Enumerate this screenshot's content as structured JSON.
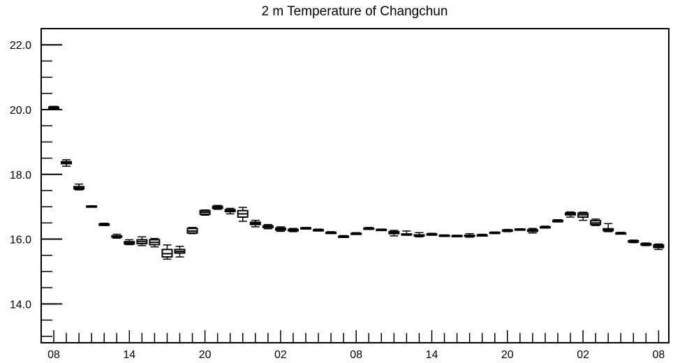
{
  "chart_data": {
    "type": "boxplot",
    "title": "2 m Temperature of Changchun",
    "xlabel": "",
    "ylabel": "",
    "ylim": [
      12.8,
      22.5
    ],
    "y_major_ticks": [
      14.0,
      16.0,
      18.0,
      20.0,
      22.0
    ],
    "y_tick_labels": [
      "14.0",
      "16.0",
      "18.0",
      "20.0",
      "22.0"
    ],
    "y_minor_step": 0.5,
    "x_tick_labels": [
      "08",
      "14",
      "20",
      "02",
      "08",
      "14",
      "20",
      "02",
      "08"
    ],
    "x_label_every": 6,
    "grid": false,
    "series": [
      {
        "boxes": [
          {
            "x": 0,
            "min": 20.02,
            "q1": 20.04,
            "median": 20.06,
            "q3": 20.08,
            "max": 20.1
          },
          {
            "x": 1,
            "min": 18.25,
            "q1": 18.33,
            "median": 18.36,
            "q3": 18.39,
            "max": 18.45
          },
          {
            "x": 2,
            "min": 17.52,
            "q1": 17.55,
            "median": 17.58,
            "q3": 17.62,
            "max": 17.7
          },
          {
            "x": 3,
            "min": 16.99,
            "q1": 17.0,
            "median": 17.01,
            "q3": 17.02,
            "max": 17.03
          },
          {
            "x": 4,
            "min": 16.42,
            "q1": 16.43,
            "median": 16.45,
            "q3": 16.47,
            "max": 16.49
          },
          {
            "x": 5,
            "min": 16.03,
            "q1": 16.06,
            "median": 16.08,
            "q3": 16.1,
            "max": 16.15
          },
          {
            "x": 6,
            "min": 15.83,
            "q1": 15.85,
            "median": 15.88,
            "q3": 15.92,
            "max": 15.98
          },
          {
            "x": 7,
            "min": 15.8,
            "q1": 15.86,
            "median": 15.92,
            "q3": 15.98,
            "max": 16.07
          },
          {
            "x": 8,
            "min": 15.76,
            "q1": 15.83,
            "median": 15.9,
            "q3": 15.98,
            "max": 16.02
          },
          {
            "x": 9,
            "min": 15.38,
            "q1": 15.45,
            "median": 15.55,
            "q3": 15.68,
            "max": 15.82
          },
          {
            "x": 10,
            "min": 15.45,
            "q1": 15.57,
            "median": 15.62,
            "q3": 15.68,
            "max": 15.78
          },
          {
            "x": 11,
            "min": 16.17,
            "q1": 16.19,
            "median": 16.25,
            "q3": 16.33,
            "max": 16.36
          },
          {
            "x": 12,
            "min": 16.74,
            "q1": 16.77,
            "median": 16.83,
            "q3": 16.88,
            "max": 16.9
          },
          {
            "x": 13,
            "min": 16.92,
            "q1": 16.95,
            "median": 16.98,
            "q3": 17.01,
            "max": 17.04
          },
          {
            "x": 14,
            "min": 16.78,
            "q1": 16.85,
            "median": 16.88,
            "q3": 16.91,
            "max": 16.95
          },
          {
            "x": 15,
            "min": 16.55,
            "q1": 16.68,
            "median": 16.78,
            "q3": 16.88,
            "max": 16.98
          },
          {
            "x": 16,
            "min": 16.38,
            "q1": 16.45,
            "median": 16.48,
            "q3": 16.52,
            "max": 16.58
          },
          {
            "x": 17,
            "min": 16.32,
            "q1": 16.36,
            "median": 16.39,
            "q3": 16.41,
            "max": 16.45
          },
          {
            "x": 18,
            "min": 16.24,
            "q1": 16.28,
            "median": 16.31,
            "q3": 16.34,
            "max": 16.38
          },
          {
            "x": 19,
            "min": 16.23,
            "q1": 16.26,
            "median": 16.28,
            "q3": 16.3,
            "max": 16.33
          },
          {
            "x": 20,
            "min": 16.31,
            "q1": 16.33,
            "median": 16.34,
            "q3": 16.35,
            "max": 16.36
          },
          {
            "x": 21,
            "min": 16.25,
            "q1": 16.27,
            "median": 16.28,
            "q3": 16.29,
            "max": 16.31
          },
          {
            "x": 22,
            "min": 16.17,
            "q1": 16.19,
            "median": 16.2,
            "q3": 16.21,
            "max": 16.23
          },
          {
            "x": 23,
            "min": 16.05,
            "q1": 16.07,
            "median": 16.08,
            "q3": 16.09,
            "max": 16.11
          },
          {
            "x": 24,
            "min": 16.15,
            "q1": 16.16,
            "median": 16.17,
            "q3": 16.18,
            "max": 16.2
          },
          {
            "x": 25,
            "min": 16.3,
            "q1": 16.31,
            "median": 16.33,
            "q3": 16.34,
            "max": 16.36
          },
          {
            "x": 26,
            "min": 16.27,
            "q1": 16.28,
            "median": 16.29,
            "q3": 16.3,
            "max": 16.31
          },
          {
            "x": 27,
            "min": 16.1,
            "q1": 16.17,
            "median": 16.21,
            "q3": 16.23,
            "max": 16.27
          },
          {
            "x": 28,
            "min": 16.12,
            "q1": 16.14,
            "median": 16.15,
            "q3": 16.16,
            "max": 16.25
          },
          {
            "x": 29,
            "min": 16.07,
            "q1": 16.1,
            "median": 16.12,
            "q3": 16.13,
            "max": 16.2
          },
          {
            "x": 30,
            "min": 16.12,
            "q1": 16.14,
            "median": 16.15,
            "q3": 16.16,
            "max": 16.18
          },
          {
            "x": 31,
            "min": 16.09,
            "q1": 16.1,
            "median": 16.11,
            "q3": 16.12,
            "max": 16.13
          },
          {
            "x": 32,
            "min": 16.08,
            "q1": 16.09,
            "median": 16.1,
            "q3": 16.11,
            "max": 16.12
          },
          {
            "x": 33,
            "min": 16.06,
            "q1": 16.09,
            "median": 16.1,
            "q3": 16.12,
            "max": 16.17
          },
          {
            "x": 34,
            "min": 16.1,
            "q1": 16.11,
            "median": 16.12,
            "q3": 16.13,
            "max": 16.15
          },
          {
            "x": 35,
            "min": 16.17,
            "q1": 16.19,
            "median": 16.2,
            "q3": 16.21,
            "max": 16.22
          },
          {
            "x": 36,
            "min": 16.23,
            "q1": 16.25,
            "median": 16.26,
            "q3": 16.28,
            "max": 16.3
          },
          {
            "x": 37,
            "min": 16.28,
            "q1": 16.29,
            "median": 16.3,
            "q3": 16.31,
            "max": 16.32
          },
          {
            "x": 38,
            "min": 16.19,
            "q1": 16.24,
            "median": 16.27,
            "q3": 16.29,
            "max": 16.33
          },
          {
            "x": 39,
            "min": 16.34,
            "q1": 16.35,
            "median": 16.36,
            "q3": 16.38,
            "max": 16.4
          },
          {
            "x": 40,
            "min": 16.53,
            "q1": 16.54,
            "median": 16.56,
            "q3": 16.58,
            "max": 16.6
          },
          {
            "x": 41,
            "min": 16.68,
            "q1": 16.75,
            "median": 16.78,
            "q3": 16.81,
            "max": 16.84
          },
          {
            "x": 42,
            "min": 16.58,
            "q1": 16.68,
            "median": 16.75,
            "q3": 16.8,
            "max": 16.83
          },
          {
            "x": 43,
            "min": 16.42,
            "q1": 16.45,
            "median": 16.5,
            "q3": 16.57,
            "max": 16.62
          },
          {
            "x": 44,
            "min": 16.23,
            "q1": 16.26,
            "median": 16.29,
            "q3": 16.32,
            "max": 16.48
          },
          {
            "x": 45,
            "min": 16.16,
            "q1": 16.17,
            "median": 16.18,
            "q3": 16.19,
            "max": 16.21
          },
          {
            "x": 46,
            "min": 15.89,
            "q1": 15.91,
            "median": 15.93,
            "q3": 15.95,
            "max": 15.97
          },
          {
            "x": 47,
            "min": 15.8,
            "q1": 15.82,
            "median": 15.84,
            "q3": 15.86,
            "max": 15.88
          },
          {
            "x": 48,
            "min": 15.68,
            "q1": 15.74,
            "median": 15.78,
            "q3": 15.82,
            "max": 15.85
          }
        ]
      }
    ]
  }
}
